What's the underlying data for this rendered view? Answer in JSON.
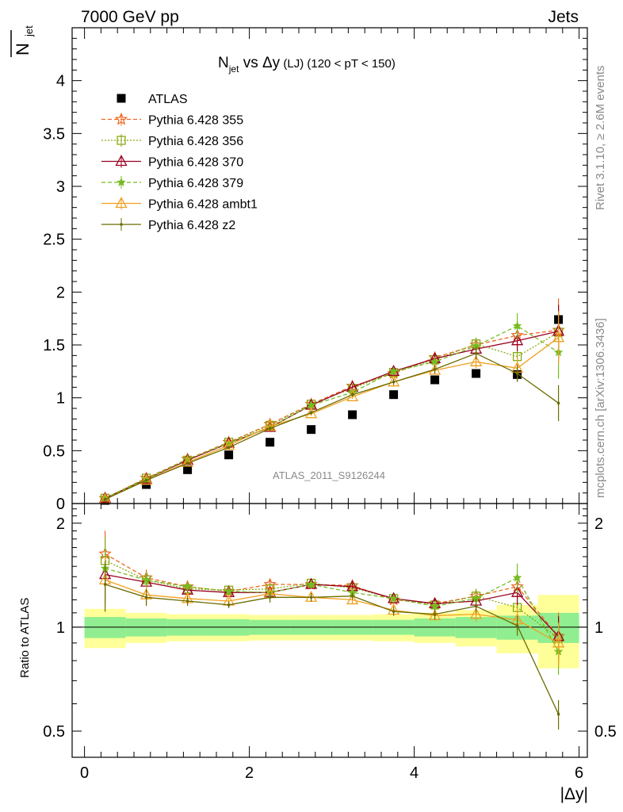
{
  "header": {
    "left": "7000 GeV pp",
    "right": "Jets"
  },
  "side_labels": {
    "rivet": "Rivet 3.1.10, ≥ 2.6M events",
    "mcplots": "mcplots.cern.ch [arXiv:1306.3436]"
  },
  "watermark": "ATLAS_2011_S9126244",
  "chart_data": [
    {
      "type": "scatter",
      "title_main": "N",
      "title_sub": "jet",
      "title_vs": " vs ",
      "title_delta": "Δy",
      "title_lj": "(LJ)",
      "title_range": "(120 < pT < 150)",
      "ylabel": "N",
      "ylabel_sub": "jet",
      "xlabel": "|Δy|",
      "xlim": [
        -0.15,
        6.1
      ],
      "ylim": [
        0,
        4.5
      ],
      "yticks": [
        "0",
        "0.5",
        "1",
        "1.5",
        "2",
        "2.5",
        "3",
        "3.5",
        "4"
      ],
      "ytick_values": [
        0,
        0.5,
        1,
        1.5,
        2,
        2.5,
        3,
        3.5,
        4
      ],
      "legend_position": "top-left",
      "x": [
        0.25,
        0.75,
        1.25,
        1.75,
        2.25,
        2.75,
        3.25,
        3.75,
        4.25,
        4.75,
        5.25,
        5.75
      ],
      "series": [
        {
          "name": "ATLAS",
          "color": "#000000",
          "marker": "square",
          "dash": "none",
          "values": [
            0.03,
            0.18,
            0.32,
            0.46,
            0.58,
            0.7,
            0.84,
            1.03,
            1.17,
            1.23,
            1.22,
            1.74
          ],
          "err": [
            0.01,
            0.01,
            0.01,
            0.02,
            0.02,
            0.02,
            0.03,
            0.03,
            0.04,
            0.04,
            0.06,
            0.08
          ]
        },
        {
          "name": "Pythia 6.428 355",
          "color": "#ee6622",
          "marker": "star-open",
          "dash": "5,3",
          "values": [
            0.05,
            0.24,
            0.42,
            0.58,
            0.75,
            0.94,
            1.11,
            1.23,
            1.38,
            1.5,
            1.59,
            1.64
          ],
          "err": [
            0.005,
            0.01,
            0.01,
            0.01,
            0.02,
            0.02,
            0.02,
            0.03,
            0.04,
            0.06,
            0.1,
            0.3
          ]
        },
        {
          "name": "Pythia 6.428 356",
          "color": "#88aa11",
          "marker": "square-open",
          "dash": "2,2",
          "values": [
            0.05,
            0.24,
            0.41,
            0.58,
            0.74,
            0.94,
            1.09,
            1.24,
            1.36,
            1.51,
            1.39,
            1.62
          ],
          "err": [
            0.005,
            0.01,
            0.01,
            0.01,
            0.02,
            0.02,
            0.02,
            0.03,
            0.04,
            0.06,
            0.1,
            0.25
          ]
        },
        {
          "name": "Pythia 6.428 370",
          "color": "#990022",
          "marker": "triangle-open",
          "dash": "none",
          "values": [
            0.05,
            0.23,
            0.41,
            0.57,
            0.72,
            0.93,
            1.1,
            1.25,
            1.37,
            1.46,
            1.54,
            1.63
          ],
          "err": [
            0.005,
            0.01,
            0.01,
            0.01,
            0.02,
            0.02,
            0.02,
            0.03,
            0.04,
            0.06,
            0.1,
            0.25
          ]
        },
        {
          "name": "Pythia 6.428 379",
          "color": "#77bb22",
          "marker": "star",
          "dash": "5,3",
          "values": [
            0.05,
            0.23,
            0.42,
            0.57,
            0.72,
            0.93,
            1.05,
            1.25,
            1.34,
            1.49,
            1.68,
            1.43
          ],
          "err": [
            0.005,
            0.01,
            0.01,
            0.01,
            0.02,
            0.02,
            0.02,
            0.03,
            0.04,
            0.06,
            0.12,
            0.25
          ]
        },
        {
          "name": "Pythia 6.428 ambt1",
          "color": "#f0a020",
          "marker": "triangle-open",
          "dash": "none",
          "values": [
            0.04,
            0.22,
            0.39,
            0.55,
            0.73,
            0.85,
            1.01,
            1.15,
            1.26,
            1.34,
            1.28,
            1.57
          ],
          "err": [
            0.005,
            0.01,
            0.01,
            0.01,
            0.02,
            0.02,
            0.02,
            0.03,
            0.04,
            0.06,
            0.1,
            0.25
          ]
        },
        {
          "name": "Pythia 6.428 z2",
          "color": "#6b6b00",
          "marker": "dot",
          "dash": "none",
          "values": [
            0.04,
            0.22,
            0.38,
            0.53,
            0.71,
            0.86,
            1.03,
            1.15,
            1.27,
            1.42,
            1.23,
            0.95
          ],
          "err": [
            0.005,
            0.01,
            0.01,
            0.01,
            0.02,
            0.02,
            0.02,
            0.03,
            0.04,
            0.06,
            0.08,
            0.17
          ]
        }
      ]
    },
    {
      "type": "scatter",
      "ylabel": "Ratio to ATLAS",
      "ylim": [
        0.42,
        2.28
      ],
      "log_y": true,
      "yticks": [
        "0.5",
        "1",
        "2"
      ],
      "ytick_values": [
        0.5,
        1,
        2
      ],
      "xticks": [
        "0",
        "2",
        "4",
        "6"
      ],
      "xtick_values": [
        0,
        2,
        4,
        6
      ],
      "reference_line": 1,
      "band_edges": [
        0,
        0.5,
        1.0,
        1.5,
        2.0,
        2.5,
        3.0,
        3.5,
        4.0,
        4.5,
        5.0,
        5.5,
        6.0
      ],
      "band_inner": [
        0.07,
        0.06,
        0.055,
        0.055,
        0.05,
        0.05,
        0.05,
        0.05,
        0.06,
        0.07,
        0.08,
        0.1
      ],
      "band_outer": [
        0.13,
        0.1,
        0.09,
        0.09,
        0.085,
        0.085,
        0.085,
        0.09,
        0.1,
        0.12,
        0.16,
        0.24
      ],
      "band_inner_color": "#90ee90",
      "band_outer_color": "#ffff99",
      "x": [
        0.25,
        0.75,
        1.25,
        1.75,
        2.25,
        2.75,
        3.25,
        3.75,
        4.25,
        4.75,
        5.25,
        5.75
      ],
      "series": [
        {
          "name": "Pythia 6.428 355",
          "values": [
            1.63,
            1.39,
            1.31,
            1.27,
            1.33,
            1.33,
            1.32,
            1.2,
            1.17,
            1.23,
            1.31,
            0.94
          ]
        },
        {
          "name": "Pythia 6.428 356",
          "values": [
            1.56,
            1.37,
            1.29,
            1.28,
            1.29,
            1.34,
            1.3,
            1.21,
            1.16,
            1.23,
            1.14,
            0.93
          ]
        },
        {
          "name": "Pythia 6.428 370",
          "values": [
            1.42,
            1.35,
            1.28,
            1.26,
            1.26,
            1.33,
            1.31,
            1.21,
            1.17,
            1.19,
            1.26,
            0.94
          ]
        },
        {
          "name": "Pythia 6.428 379",
          "values": [
            1.48,
            1.37,
            1.31,
            1.27,
            1.26,
            1.33,
            1.26,
            1.21,
            1.15,
            1.21,
            1.39,
            0.85
          ]
        },
        {
          "name": "Pythia 6.428 ambt1",
          "values": [
            1.37,
            1.24,
            1.21,
            1.19,
            1.25,
            1.22,
            1.2,
            1.12,
            1.08,
            1.09,
            1.05,
            0.9
          ]
        },
        {
          "name": "Pythia 6.428 z2",
          "values": [
            1.33,
            1.22,
            1.19,
            1.16,
            1.22,
            1.22,
            1.23,
            1.11,
            1.09,
            1.15,
            1.01,
            0.56
          ]
        }
      ]
    }
  ]
}
